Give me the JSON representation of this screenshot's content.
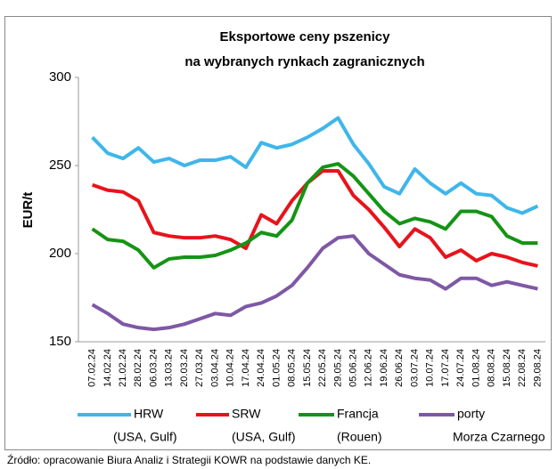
{
  "chart_data": {
    "type": "line",
    "title": [
      "Eksportowe ceny pszenicy",
      "na wybranych rynkach zagranicznych"
    ],
    "y_label": "EUR/t",
    "source": "Źródło: opracowanie Biura Analiz i Strategii KOWR na podstawie danych KE.",
    "categories": [
      "07.02.24",
      "14.02.24",
      "21.02.24",
      "28.02.24",
      "06.03.24",
      "13.03.24",
      "20.03.24",
      "27.03.24",
      "03.04.24",
      "10.04.24",
      "17.04.24",
      "24.04.24",
      "01.05.24",
      "08.05.24",
      "15.05.24",
      "22.05.24",
      "29.05.24",
      "05.06.24",
      "12.06.24",
      "19.06.24",
      "26.06.24",
      "03.07.24",
      "10.07.24",
      "17.07.24",
      "24.07.24",
      "01.08.24",
      "08.08.24",
      "15.08.24",
      "22.08.24",
      "29.08.24"
    ],
    "ylim": [
      150,
      300
    ],
    "yticks": [
      150,
      200,
      250,
      300
    ],
    "grid": false,
    "series": [
      {
        "name": "HRW",
        "note": "(USA, Gulf)",
        "color": "#3fb6ea",
        "values": [
          266,
          257,
          254,
          260,
          252,
          254,
          250,
          253,
          253,
          255,
          249,
          263,
          260,
          262,
          266,
          271,
          277,
          262,
          251,
          238,
          234,
          248,
          240,
          234,
          240,
          234,
          233,
          226,
          223,
          227
        ]
      },
      {
        "name": "SRW",
        "note": "(USA, Gulf)",
        "color": "#e8131b",
        "values": [
          239,
          236,
          235,
          230,
          212,
          210,
          209,
          209,
          210,
          208,
          203,
          222,
          217,
          230,
          240,
          247,
          247,
          233,
          225,
          215,
          204,
          214,
          209,
          198,
          202,
          196,
          200,
          198,
          195,
          193
        ]
      },
      {
        "name": "Francja",
        "note": "(Rouen)",
        "color": "#149414",
        "values": [
          214,
          208,
          207,
          202,
          192,
          197,
          198,
          198,
          199,
          202,
          206,
          212,
          210,
          219,
          240,
          249,
          251,
          244,
          234,
          224,
          217,
          220,
          218,
          214,
          224,
          224,
          221,
          210,
          206,
          206
        ]
      },
      {
        "name": "porty",
        "note": "Morza Czarnego",
        "color": "#7e58a6",
        "values": [
          171,
          166,
          160,
          158,
          157,
          158,
          160,
          163,
          166,
          165,
          170,
          172,
          176,
          182,
          192,
          203,
          209,
          210,
          200,
          194,
          188,
          186,
          185,
          180,
          186,
          186,
          182,
          184,
          182,
          180
        ]
      }
    ]
  }
}
